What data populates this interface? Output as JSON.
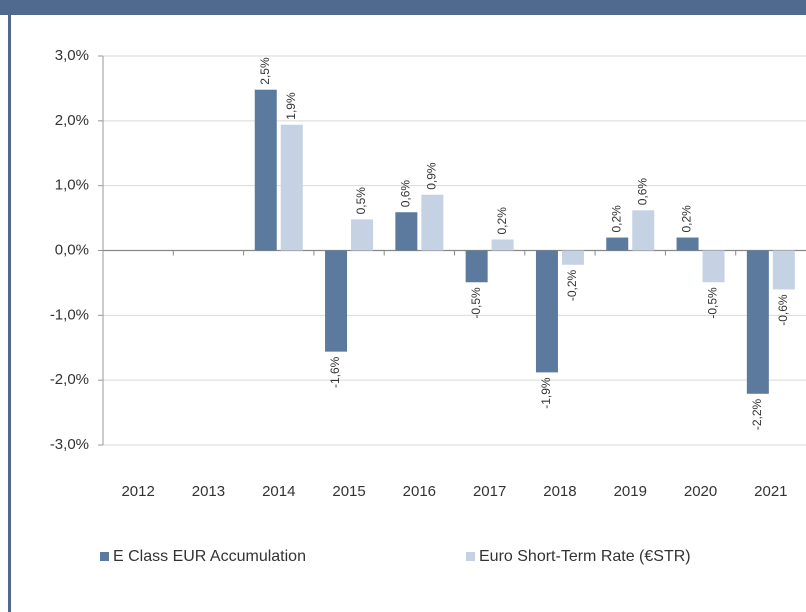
{
  "chart_data": {
    "type": "bar",
    "categories": [
      "2012",
      "2013",
      "2014",
      "2015",
      "2016",
      "2017",
      "2018",
      "2019",
      "2020",
      "2021"
    ],
    "series": [
      {
        "name": "E Class EUR Accumulation",
        "color": "#5b7a9d",
        "values": [
          null,
          null,
          2.48,
          -1.56,
          0.59,
          -0.49,
          -1.88,
          0.2,
          0.2,
          -2.21
        ],
        "value_labels": [
          null,
          null,
          "2,5%",
          "-1,6%",
          "0,6%",
          "-0,5%",
          "-1,9%",
          "0,2%",
          "0,2%",
          "-2,2%"
        ]
      },
      {
        "name": "Euro Short-Term Rate (€STR)",
        "color": "#c5d2e4",
        "values": [
          null,
          null,
          1.94,
          0.48,
          0.86,
          0.17,
          -0.22,
          0.62,
          -0.49,
          -0.6
        ],
        "value_labels": [
          null,
          null,
          "1,9%",
          "0,5%",
          "0,9%",
          "0,2%",
          "-0,2%",
          "0,6%",
          "-0,5%",
          "-0,6%"
        ]
      }
    ],
    "ylim": [
      -3,
      3
    ],
    "yticks": [
      {
        "value": -3,
        "label": "-3,0%"
      },
      {
        "value": -2,
        "label": "-2,0%"
      },
      {
        "value": -1,
        "label": "-1,0%"
      },
      {
        "value": 0,
        "label": "0,0%"
      },
      {
        "value": 1,
        "label": "1,0%"
      },
      {
        "value": 2,
        "label": "2,0%"
      },
      {
        "value": 3,
        "label": "3,0%"
      }
    ],
    "grid": true,
    "legend": "bottom"
  }
}
